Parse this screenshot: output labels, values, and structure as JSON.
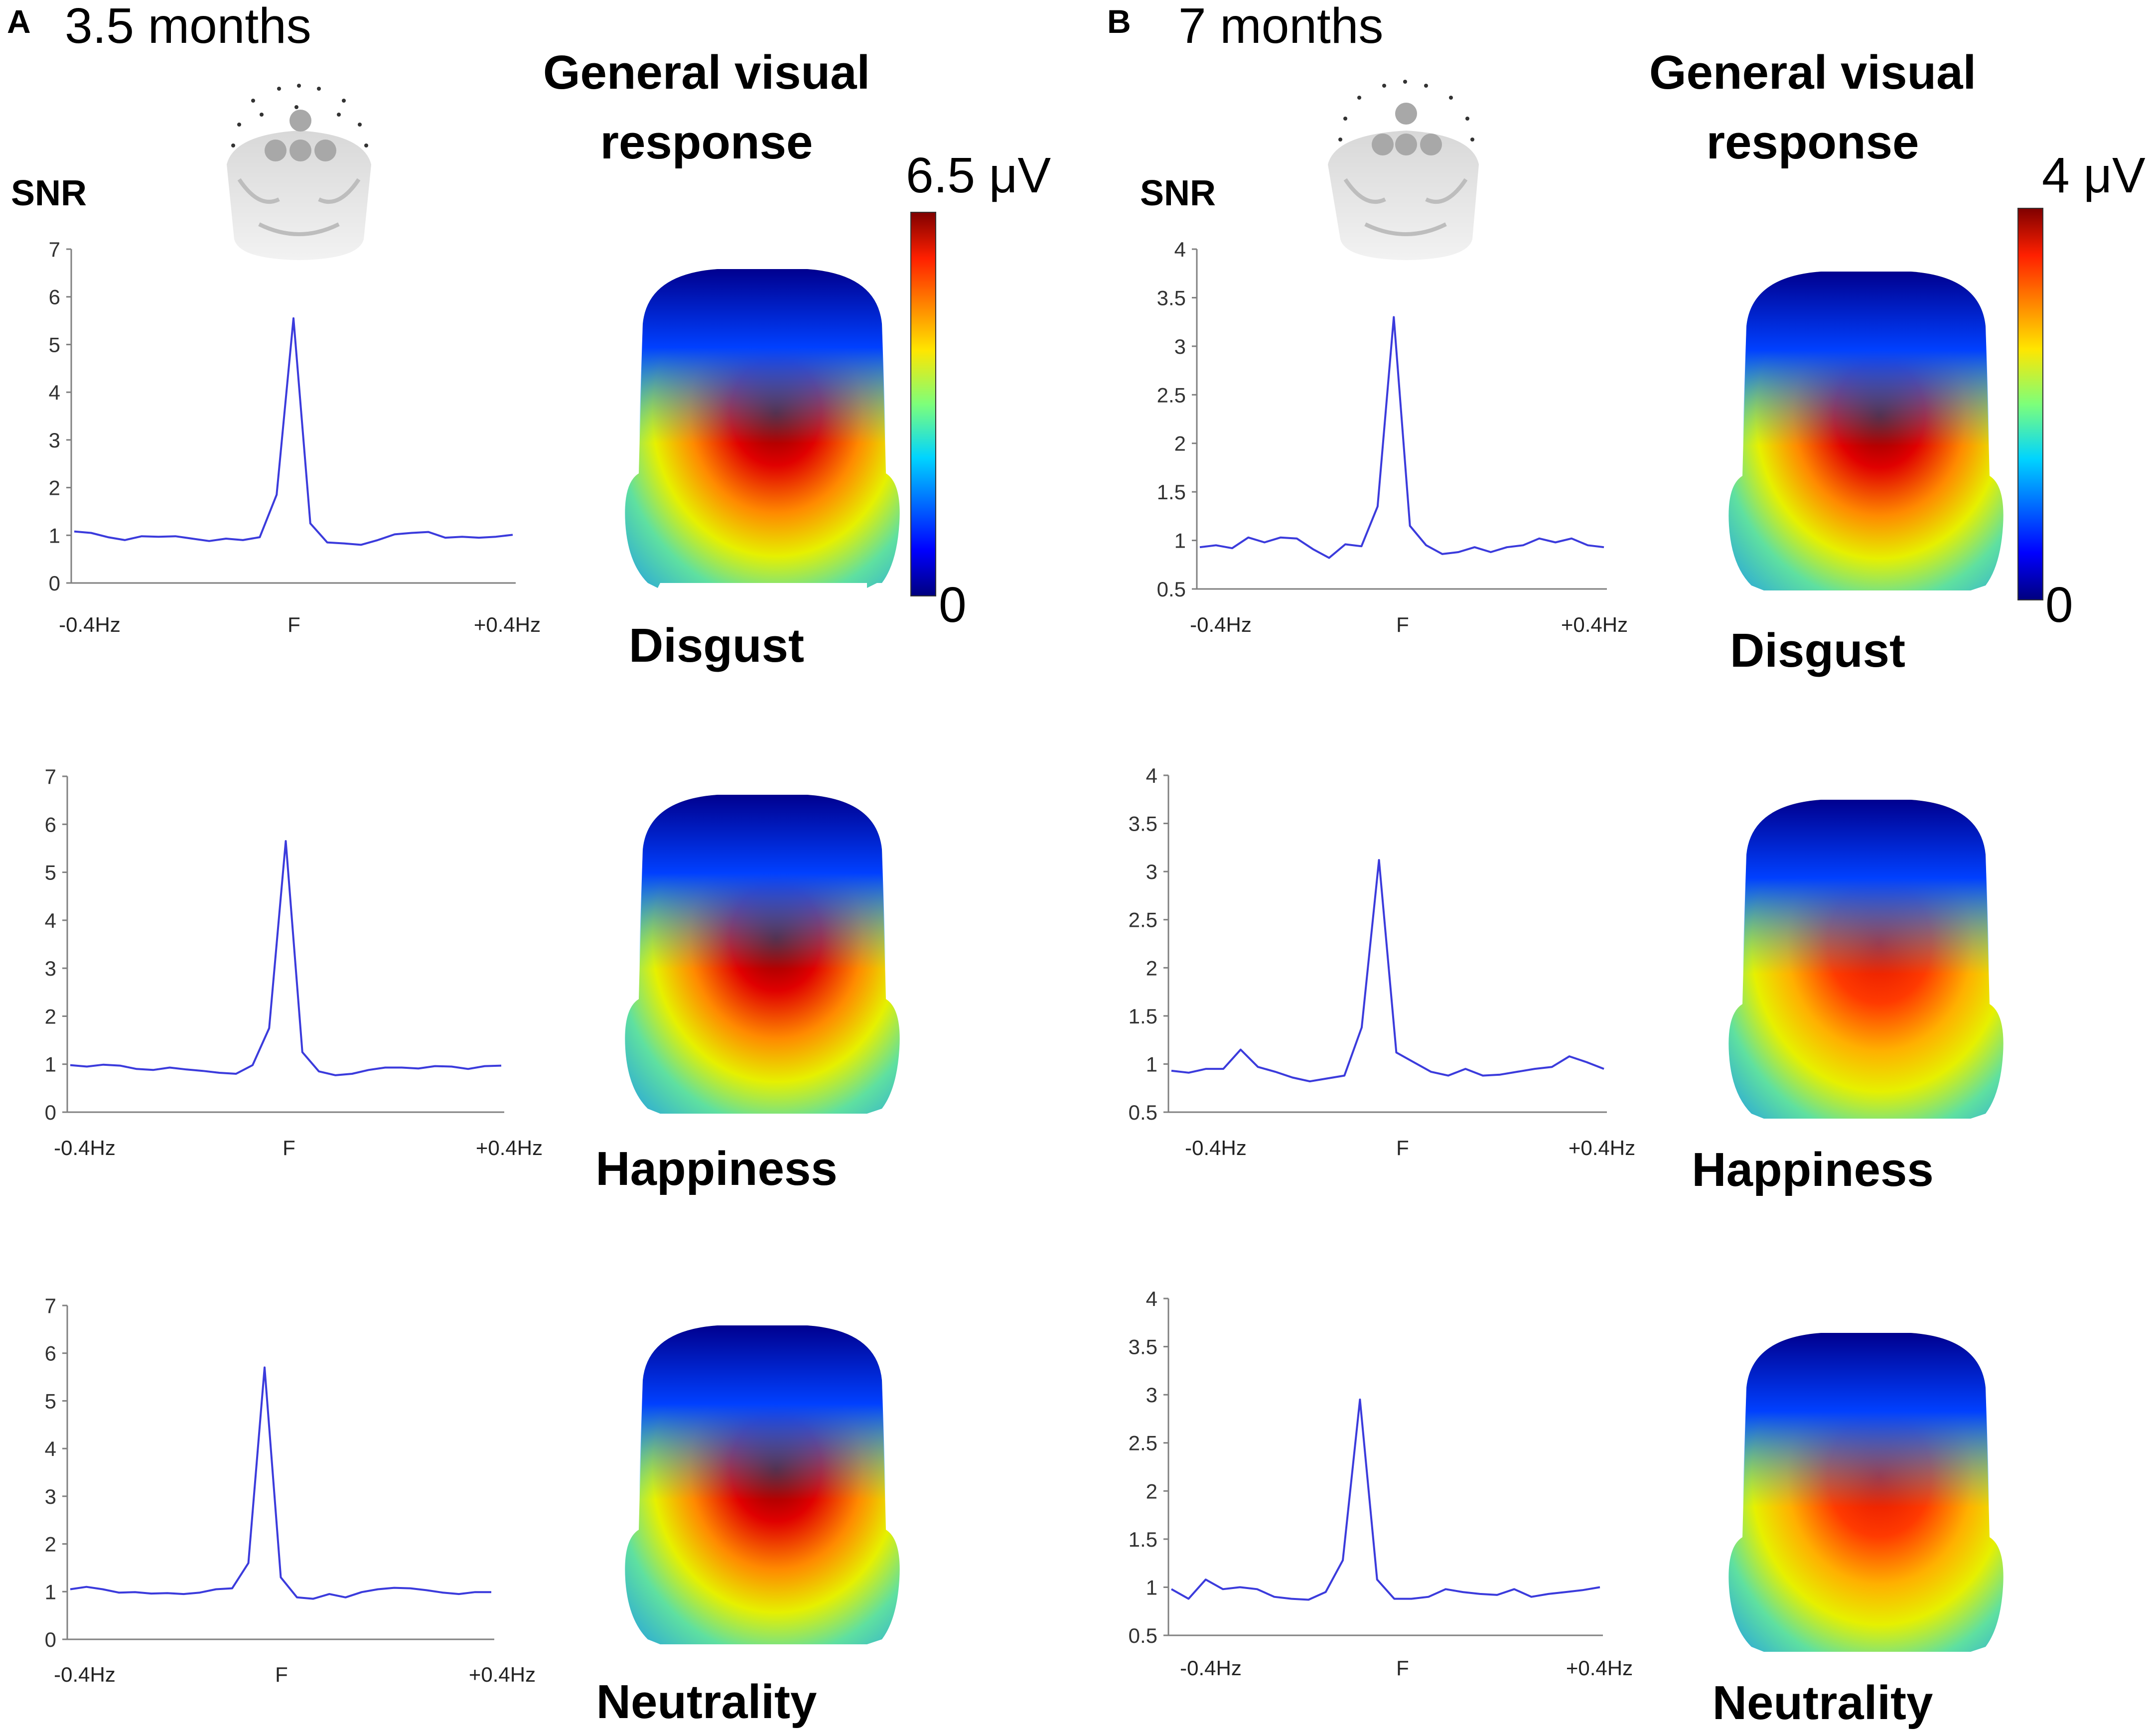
{
  "panels": [
    {
      "letter": "A",
      "age": "3.5 months",
      "topo_title_line1": "General visual",
      "topo_title_line2": "response",
      "snr_label": "SNR",
      "colorbar_max": "6.5 μV",
      "colorbar_min": "0",
      "conditions": [
        "Disgust",
        "Happiness",
        "Neutrality"
      ]
    },
    {
      "letter": "B",
      "age": "7 months",
      "topo_title_line1": "General visual",
      "topo_title_line2": "response",
      "snr_label": "SNR",
      "colorbar_max": "4 μV",
      "colorbar_min": "0",
      "conditions": [
        "Disgust",
        "Happiness",
        "Neutrality"
      ]
    }
  ],
  "colors": {
    "line": "#3b3bdc",
    "axis": "#808080"
  },
  "chart_data": [
    {
      "type": "line",
      "panel": "A",
      "condition": "Disgust",
      "xlabel": "",
      "ylabel": "SNR",
      "x_ticks": [
        "-0.4Hz",
        "F",
        "+0.4Hz"
      ],
      "ylim": [
        0,
        7
      ],
      "yticks": [
        0,
        1,
        2,
        3,
        4,
        5,
        6,
        7
      ],
      "values": [
        1.08,
        1.05,
        0.96,
        0.9,
        0.98,
        0.97,
        0.98,
        0.93,
        0.88,
        0.93,
        0.9,
        0.96,
        1.85,
        5.55,
        1.25,
        0.85,
        0.83,
        0.8,
        0.9,
        1.02,
        1.05,
        1.07,
        0.95,
        0.97,
        0.95,
        0.97,
        1.01
      ]
    },
    {
      "type": "line",
      "panel": "A",
      "condition": "Happiness",
      "xlabel": "",
      "ylabel": "SNR",
      "x_ticks": [
        "-0.4Hz",
        "F",
        "+0.4Hz"
      ],
      "ylim": [
        0,
        7
      ],
      "yticks": [
        0,
        1,
        2,
        3,
        4,
        5,
        6,
        7
      ],
      "values": [
        0.98,
        0.95,
        0.99,
        0.97,
        0.9,
        0.88,
        0.93,
        0.89,
        0.86,
        0.82,
        0.8,
        0.98,
        1.75,
        5.65,
        1.25,
        0.85,
        0.77,
        0.8,
        0.88,
        0.93,
        0.93,
        0.91,
        0.96,
        0.95,
        0.9,
        0.96,
        0.97
      ]
    },
    {
      "type": "line",
      "panel": "A",
      "condition": "Neutrality",
      "xlabel": "",
      "ylabel": "SNR",
      "x_ticks": [
        "-0.4Hz",
        "F",
        "+0.4Hz"
      ],
      "ylim": [
        0,
        7
      ],
      "yticks": [
        0,
        1,
        2,
        3,
        4,
        5,
        6,
        7
      ],
      "values": [
        1.05,
        1.1,
        1.05,
        0.98,
        0.99,
        0.96,
        0.97,
        0.95,
        0.98,
        1.05,
        1.07,
        1.6,
        5.7,
        1.3,
        0.88,
        0.85,
        0.95,
        0.88,
        0.99,
        1.05,
        1.08,
        1.07,
        1.03,
        0.98,
        0.95,
        0.99,
        0.99
      ]
    },
    {
      "type": "line",
      "panel": "B",
      "condition": "Disgust",
      "xlabel": "",
      "ylabel": "SNR",
      "x_ticks": [
        "-0.4Hz",
        "F",
        "+0.4Hz"
      ],
      "ylim": [
        0.5,
        4
      ],
      "yticks": [
        0.5,
        1,
        1.5,
        2,
        2.5,
        3,
        3.5,
        4
      ],
      "values": [
        0.93,
        0.95,
        0.92,
        1.03,
        0.98,
        1.03,
        1.02,
        0.91,
        0.82,
        0.96,
        0.94,
        1.35,
        3.3,
        1.15,
        0.95,
        0.86,
        0.88,
        0.93,
        0.88,
        0.93,
        0.95,
        1.02,
        0.98,
        1.02,
        0.95,
        0.93
      ]
    },
    {
      "type": "line",
      "panel": "B",
      "condition": "Happiness",
      "xlabel": "",
      "ylabel": "SNR",
      "x_ticks": [
        "-0.4Hz",
        "F",
        "+0.4Hz"
      ],
      "ylim": [
        0.5,
        4
      ],
      "yticks": [
        0.5,
        1,
        1.5,
        2,
        2.5,
        3,
        3.5,
        4
      ],
      "values": [
        0.93,
        0.91,
        0.95,
        0.95,
        1.15,
        0.97,
        0.92,
        0.86,
        0.82,
        0.85,
        0.88,
        1.38,
        3.12,
        1.12,
        1.02,
        0.92,
        0.88,
        0.95,
        0.88,
        0.89,
        0.92,
        0.95,
        0.97,
        1.08,
        1.02,
        0.95
      ]
    },
    {
      "type": "line",
      "panel": "B",
      "condition": "Neutrality",
      "xlabel": "",
      "ylabel": "SNR",
      "x_ticks": [
        "-0.4Hz",
        "F",
        "+0.4Hz"
      ],
      "ylim": [
        0.5,
        4
      ],
      "yticks": [
        0.5,
        1,
        1.5,
        2,
        2.5,
        3,
        3.5,
        4
      ],
      "values": [
        0.98,
        0.88,
        1.08,
        0.98,
        1.0,
        0.98,
        0.9,
        0.88,
        0.87,
        0.95,
        1.28,
        2.95,
        1.08,
        0.88,
        0.88,
        0.9,
        0.98,
        0.95,
        0.93,
        0.92,
        0.98,
        0.9,
        0.93,
        0.95,
        0.97,
        1.0
      ]
    }
  ]
}
